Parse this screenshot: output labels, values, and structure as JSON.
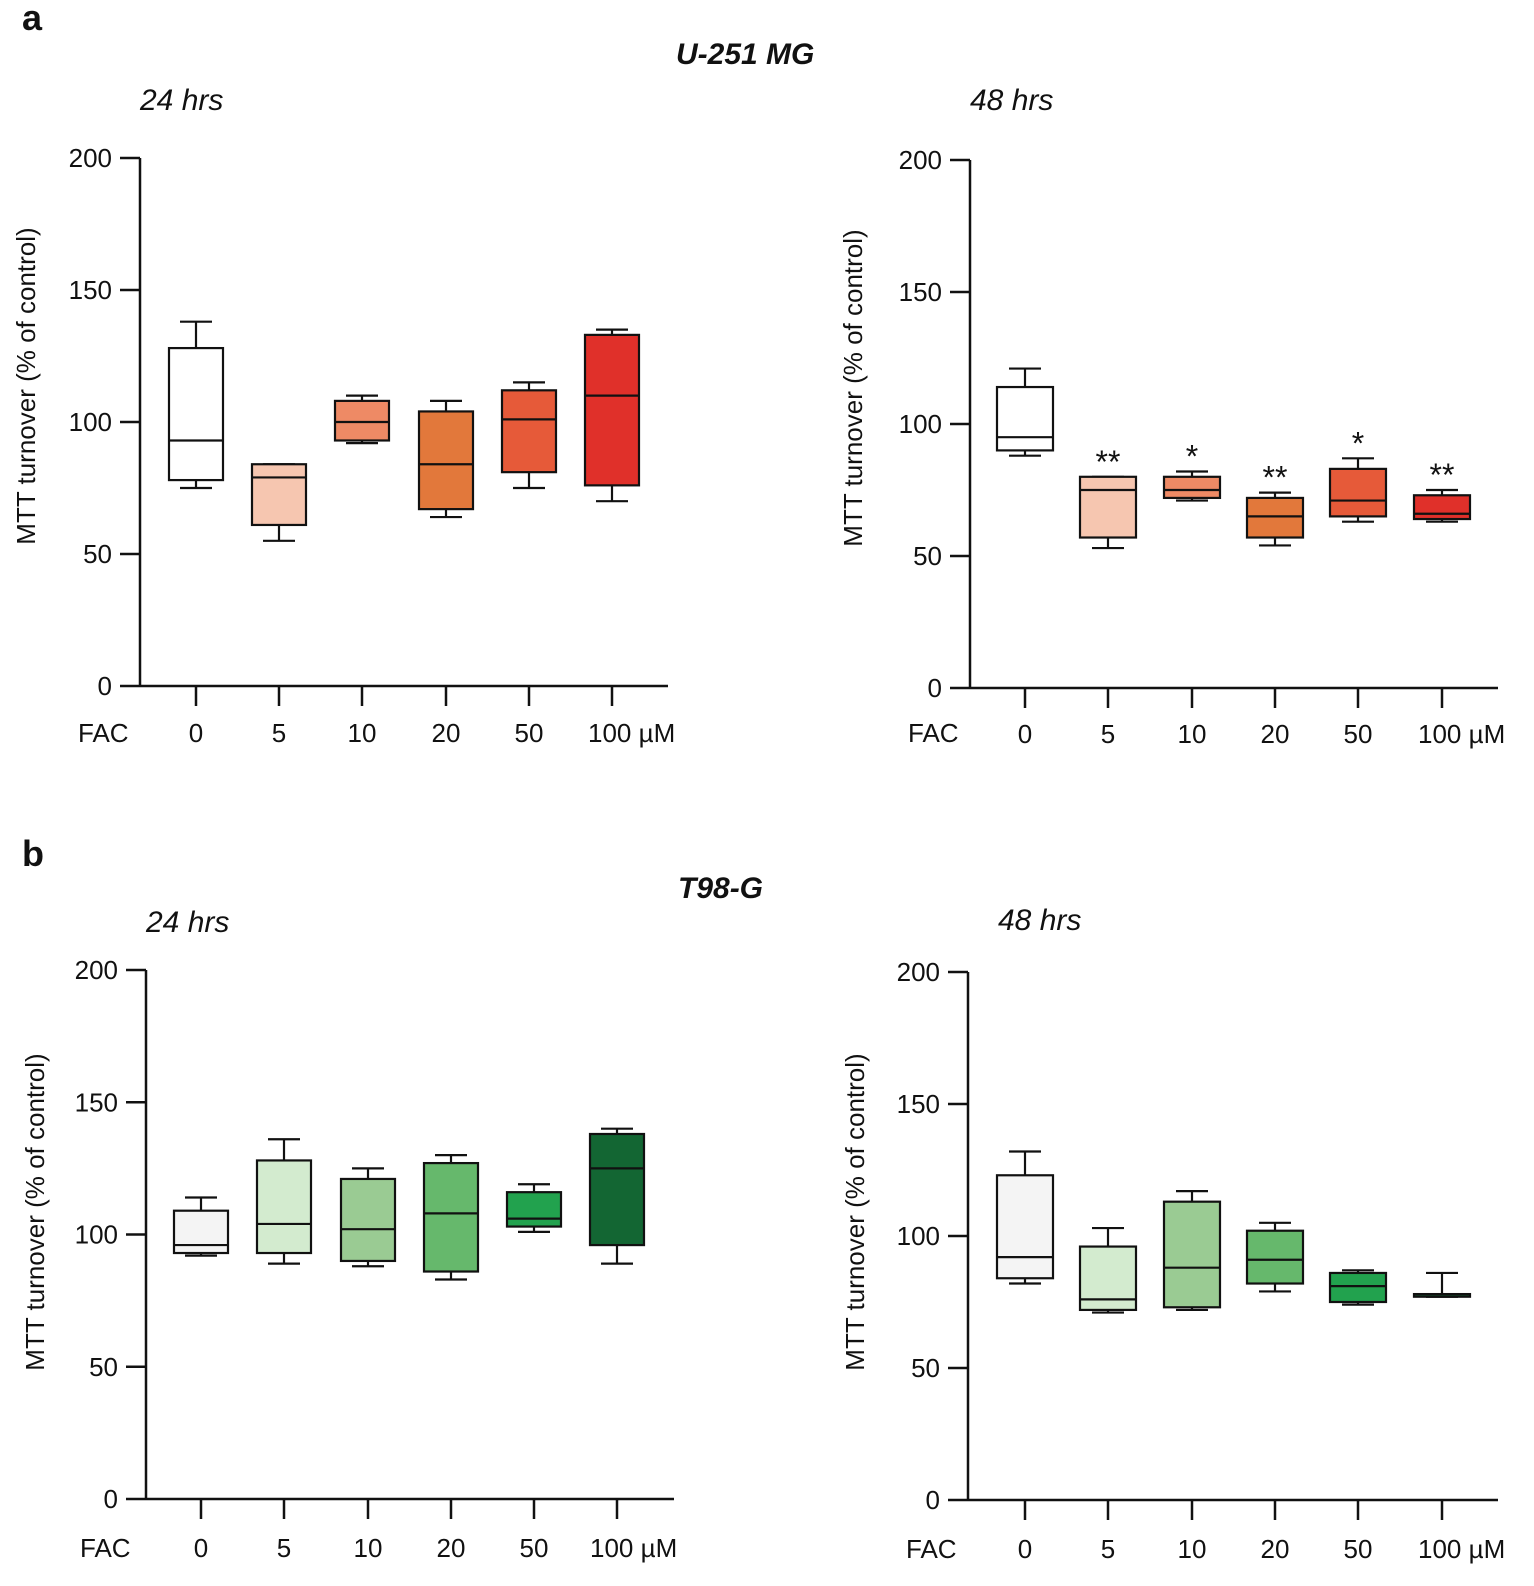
{
  "figure": {
    "panels": [
      {
        "letter": "a",
        "cell_line": "U-251 MG"
      },
      {
        "letter": "b",
        "cell_line": "T98-G"
      }
    ]
  },
  "colors": {
    "axis": "#111111",
    "u251": [
      "#ffffff",
      "#f6c6b0",
      "#ee8a65",
      "#e2783b",
      "#e65a39",
      "#e0302a"
    ],
    "t98g": [
      "#f4f4f4",
      "#d3ebcf",
      "#9acb93",
      "#66b86c",
      "#22a24e",
      "#136633"
    ]
  },
  "chart_data": [
    {
      "type": "boxplot",
      "panel": "a",
      "timepoint": "24 hrs",
      "ylabel": "MTT turnover (% of control)",
      "ylim": [
        0,
        200
      ],
      "yticks": [
        "0",
        "50",
        "100",
        "150",
        "200"
      ],
      "xprefix": "FAC",
      "categories": [
        "0",
        "5",
        "10",
        "20",
        "50",
        "100 µM"
      ],
      "boxes": [
        {
          "min": 75,
          "q1": 78,
          "median": 93,
          "q3": 128,
          "max": 138
        },
        {
          "min": 55,
          "q1": 61,
          "median": 79,
          "q3": 84,
          "max": 84
        },
        {
          "min": 92,
          "q1": 93,
          "median": 100,
          "q3": 108,
          "max": 110
        },
        {
          "min": 64,
          "q1": 67,
          "median": 84,
          "q3": 104,
          "max": 108
        },
        {
          "min": 75,
          "q1": 81,
          "median": 101,
          "q3": 112,
          "max": 115
        },
        {
          "min": 70,
          "q1": 76,
          "median": 110,
          "q3": 133,
          "max": 135
        }
      ],
      "annotations": [
        "",
        "",
        "",
        "",
        "",
        ""
      ]
    },
    {
      "type": "boxplot",
      "panel": "a",
      "timepoint": "48 hrs",
      "ylabel": "MTT turnover (% of control)",
      "ylim": [
        0,
        200
      ],
      "yticks": [
        "0",
        "50",
        "100",
        "150",
        "200"
      ],
      "xprefix": "FAC",
      "categories": [
        "0",
        "5",
        "10",
        "20",
        "50",
        "100 µM"
      ],
      "boxes": [
        {
          "min": 88,
          "q1": 90,
          "median": 95,
          "q3": 114,
          "max": 121
        },
        {
          "min": 53,
          "q1": 57,
          "median": 75,
          "q3": 80,
          "max": 80
        },
        {
          "min": 71,
          "q1": 72,
          "median": 75,
          "q3": 80,
          "max": 82
        },
        {
          "min": 54,
          "q1": 57,
          "median": 65,
          "q3": 72,
          "max": 74
        },
        {
          "min": 63,
          "q1": 65,
          "median": 71,
          "q3": 83,
          "max": 87
        },
        {
          "min": 63,
          "q1": 64,
          "median": 66,
          "q3": 73,
          "max": 75
        }
      ],
      "annotations": [
        "",
        "**",
        "*",
        "**",
        "*",
        "**"
      ]
    },
    {
      "type": "boxplot",
      "panel": "b",
      "timepoint": "24 hrs",
      "ylabel": "MTT turnover (% of control)",
      "ylim": [
        0,
        200
      ],
      "yticks": [
        "0",
        "50",
        "100",
        "150",
        "200"
      ],
      "xprefix": "FAC",
      "categories": [
        "0",
        "5",
        "10",
        "20",
        "50",
        "100 µM"
      ],
      "boxes": [
        {
          "min": 92,
          "q1": 93,
          "median": 96,
          "q3": 109,
          "max": 114
        },
        {
          "min": 89,
          "q1": 93,
          "median": 104,
          "q3": 128,
          "max": 136
        },
        {
          "min": 88,
          "q1": 90,
          "median": 102,
          "q3": 121,
          "max": 125
        },
        {
          "min": 83,
          "q1": 86,
          "median": 108,
          "q3": 127,
          "max": 130
        },
        {
          "min": 101,
          "q1": 103,
          "median": 106,
          "q3": 116,
          "max": 119
        },
        {
          "min": 89,
          "q1": 96,
          "median": 125,
          "q3": 138,
          "max": 140
        }
      ],
      "annotations": [
        "",
        "",
        "",
        "",
        "",
        ""
      ]
    },
    {
      "type": "boxplot",
      "panel": "b",
      "timepoint": "48 hrs",
      "ylabel": "MTT turnover (% of control)",
      "ylim": [
        0,
        200
      ],
      "yticks": [
        "0",
        "50",
        "100",
        "150",
        "200"
      ],
      "xprefix": "FAC",
      "categories": [
        "0",
        "5",
        "10",
        "20",
        "50",
        "100 µM"
      ],
      "boxes": [
        {
          "min": 82,
          "q1": 84,
          "median": 92,
          "q3": 123,
          "max": 132
        },
        {
          "min": 71,
          "q1": 72,
          "median": 76,
          "q3": 96,
          "max": 103
        },
        {
          "min": 72,
          "q1": 73,
          "median": 88,
          "q3": 113,
          "max": 117
        },
        {
          "min": 79,
          "q1": 82,
          "median": 91,
          "q3": 102,
          "max": 105
        },
        {
          "min": 74,
          "q1": 75,
          "median": 81,
          "q3": 86,
          "max": 87
        },
        {
          "min": 77,
          "q1": 77,
          "median": 78,
          "q3": 78,
          "max": 86
        }
      ],
      "annotations": [
        "",
        "",
        "",
        "",
        "",
        ""
      ]
    }
  ]
}
